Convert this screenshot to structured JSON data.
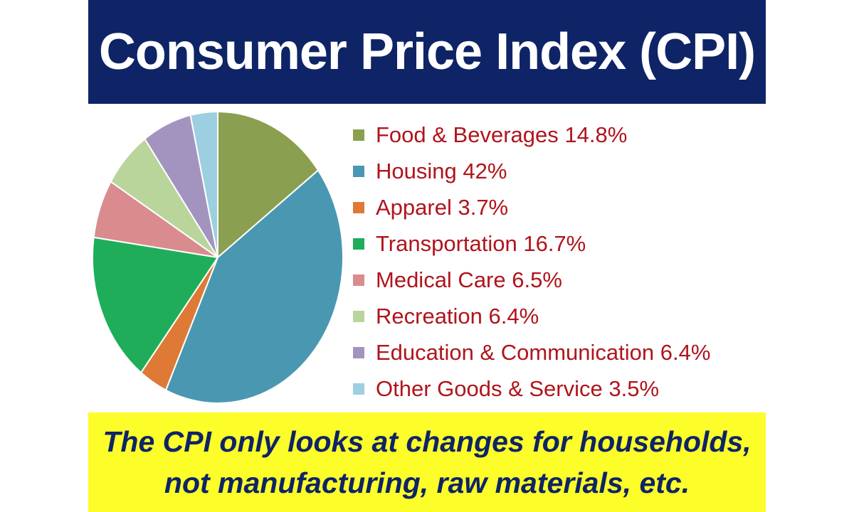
{
  "header": {
    "title": "Consumer Price Index (CPI)"
  },
  "chart_data": {
    "type": "pie",
    "title": "",
    "slices": [
      {
        "label": "Food & Beverages",
        "value": 14.8,
        "legend_text": "Food & Beverages 14.8%",
        "color": "#8aa050"
      },
      {
        "label": "Housing",
        "value": 42,
        "legend_text": "Housing 42%",
        "color": "#4a97b2"
      },
      {
        "label": "Apparel",
        "value": 3.7,
        "legend_text": "Apparel 3.7%",
        "color": "#de7a36"
      },
      {
        "label": "Transportation",
        "value": 16.7,
        "legend_text": "Transportation 16.7%",
        "color": "#1fad5a"
      },
      {
        "label": "Medical Care",
        "value": 6.5,
        "legend_text": "Medical Care 6.5%",
        "color": "#d98b8d"
      },
      {
        "label": "Recreation",
        "value": 6.4,
        "legend_text": "Recreation 6.4%",
        "color": "#b9d59c"
      },
      {
        "label": "Education & Communication",
        "value": 6.4,
        "legend_text": "Education & Communication 6.4%",
        "color": "#a394bf"
      },
      {
        "label": "Other Goods & Service",
        "value": 3.5,
        "legend_text": "Other Goods & Service 3.5%",
        "color": "#9ccfe0"
      }
    ],
    "legend_placement": "right",
    "start_angle": "top",
    "direction": "clockwise"
  },
  "footer": {
    "text": "The CPI only looks at changes for households, not manufacturing, raw materials, etc."
  },
  "colors": {
    "title_background": "#0e2466",
    "title_text": "#ffffff",
    "legend_text": "#b0141c",
    "footer_background": "#fdfd2a",
    "footer_text": "#0e2466"
  }
}
